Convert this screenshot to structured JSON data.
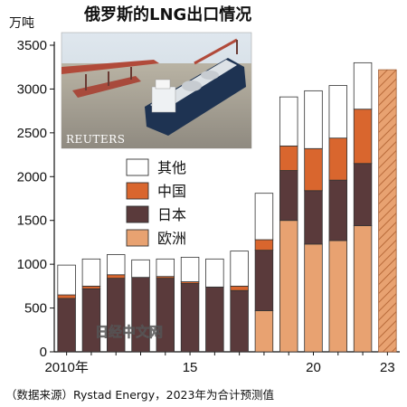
{
  "header": {
    "title": "俄罗斯的LNG出口情况",
    "unit": "万吨"
  },
  "photo": {
    "credit": "REUTERS"
  },
  "watermark": "日经中文网",
  "source_note": "（数据来源）Rystad Energy，2023年为合计预测值",
  "colors": {
    "other": "#ffffff",
    "china": "#d9662e",
    "japan": "#5a3a3b",
    "europe": "#e8a271",
    "forecast_hatch": "#e8a271"
  },
  "chart_data": {
    "type": "bar",
    "stacked": true,
    "title": "俄罗斯的LNG出口情况",
    "ylabel": "万吨",
    "xlabel": "",
    "ylim": [
      0,
      3500
    ],
    "yticks": [
      0,
      500,
      1000,
      1500,
      2000,
      2500,
      3000,
      3500
    ],
    "yticklabels": [
      "0",
      "500",
      "1000",
      "1500",
      "2000",
      "2500",
      "3000",
      "3500"
    ],
    "categories": [
      "2010",
      "2011",
      "2012",
      "2013",
      "2014",
      "2015",
      "2016",
      "2017",
      "2018",
      "2019",
      "2020",
      "2021",
      "2022",
      "2023"
    ],
    "xticklabels": [
      {
        "category": "2010",
        "label": "2010年"
      },
      {
        "category": "2015",
        "label": "15"
      },
      {
        "category": "2020",
        "label": "20"
      },
      {
        "category": "2023",
        "label": "23"
      }
    ],
    "series": [
      {
        "name": "欧洲",
        "color_key": "europe",
        "values": [
          0,
          0,
          0,
          0,
          0,
          0,
          0,
          0,
          470,
          1500,
          1230,
          1270,
          1440,
          null
        ]
      },
      {
        "name": "日本",
        "color_key": "japan",
        "values": [
          610,
          720,
          840,
          850,
          840,
          780,
          740,
          700,
          690,
          570,
          610,
          690,
          710,
          null
        ]
      },
      {
        "name": "中国",
        "color_key": "china",
        "values": [
          40,
          30,
          40,
          0,
          20,
          20,
          0,
          50,
          120,
          280,
          480,
          480,
          620,
          null
        ]
      },
      {
        "name": "其他",
        "color_key": "other",
        "values": [
          340,
          310,
          230,
          200,
          200,
          280,
          320,
          400,
          530,
          560,
          660,
          600,
          530,
          null
        ]
      }
    ],
    "forecast_total": {
      "category": "2023",
      "value": 3220,
      "note": "合计预测值"
    },
    "legend": {
      "placement": "top-left inside plot",
      "entries": [
        {
          "name": "其他",
          "color_key": "other"
        },
        {
          "name": "中国",
          "color_key": "china"
        },
        {
          "name": "日本",
          "color_key": "japan"
        },
        {
          "name": "欧洲",
          "color_key": "europe"
        }
      ]
    },
    "grid": false
  }
}
